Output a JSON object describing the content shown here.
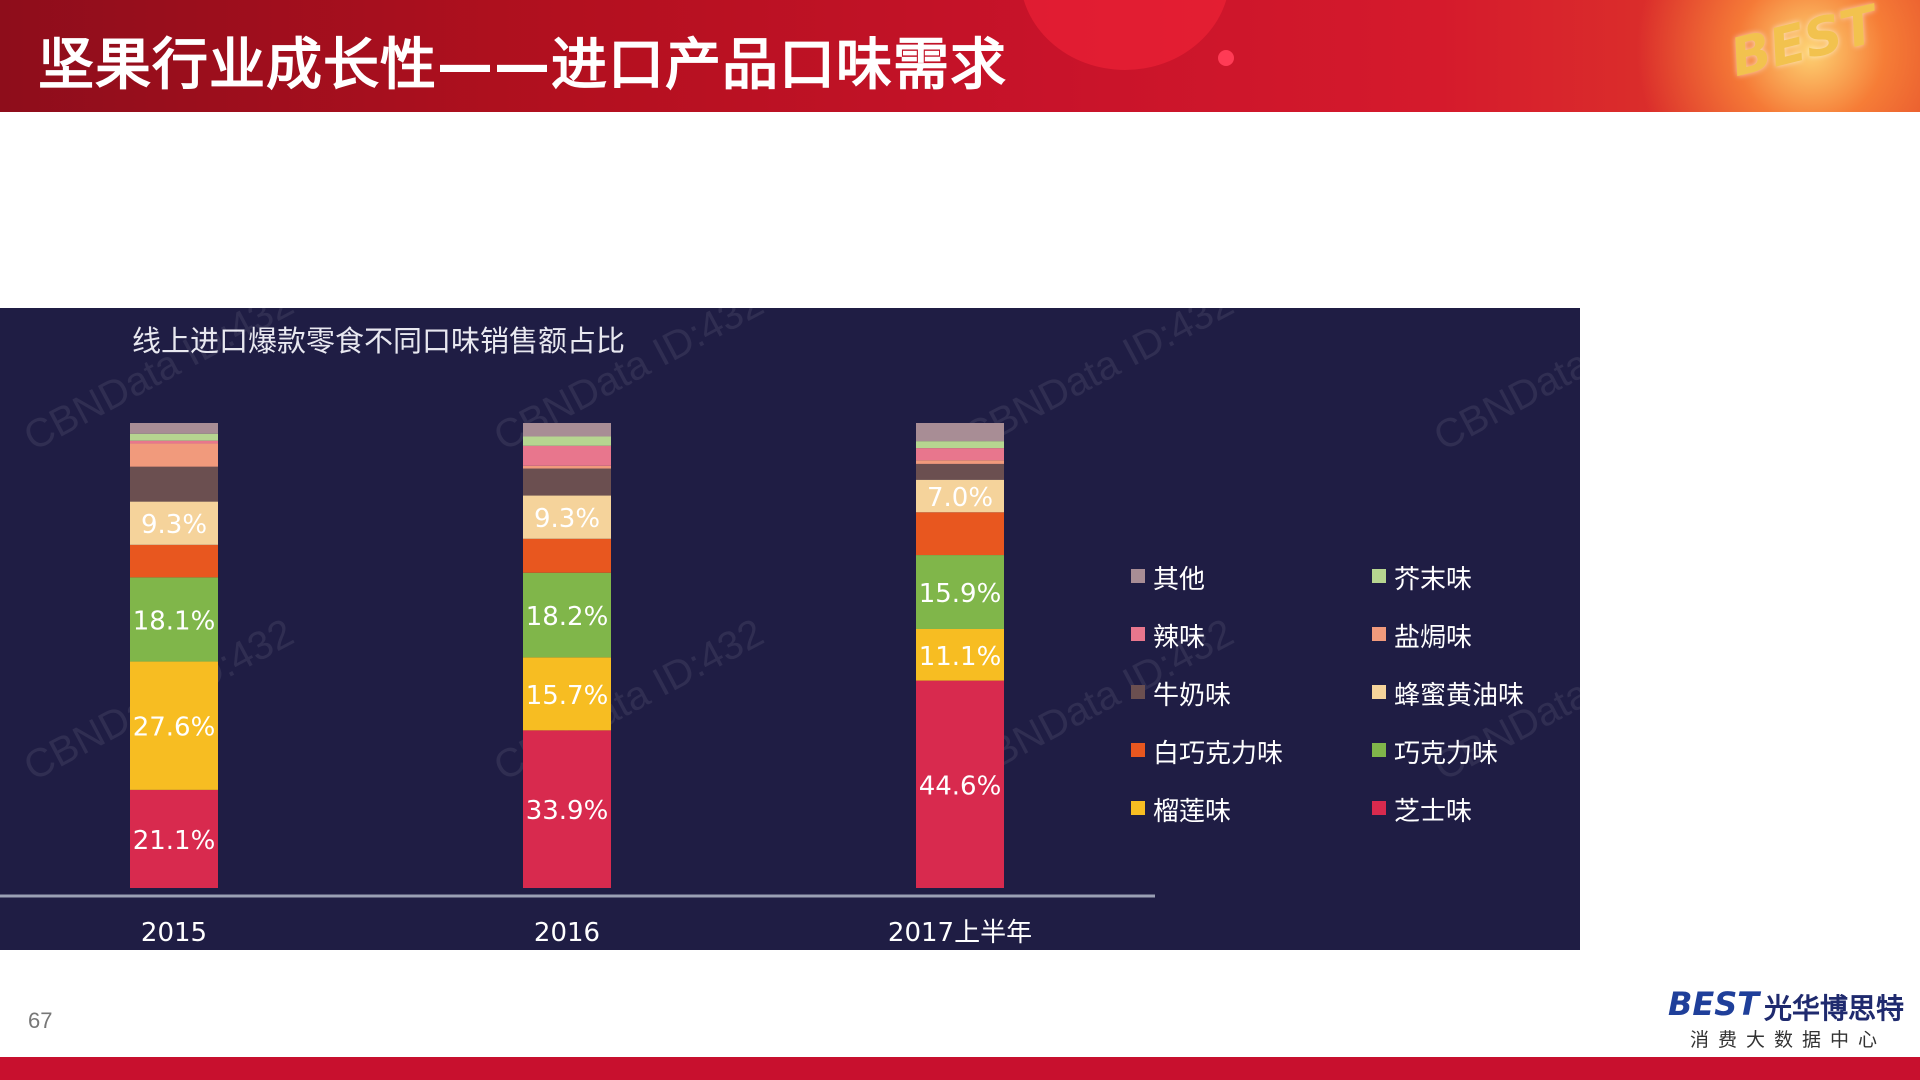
{
  "header": {
    "title": "坚果行业成长性——进口产品口味需求",
    "badge": "BEST"
  },
  "footer": {
    "page_number": "67",
    "brand_mark": "BEST",
    "brand_name": "光华博思特",
    "brand_sub": "消费大数据中心"
  },
  "watermark": {
    "text": "CBNData ID:432"
  },
  "colors": {
    "header_red": "#b3101f",
    "panel_bg": "#1f1d44",
    "footer_red": "#c8102e"
  },
  "chart_data": {
    "type": "bar",
    "stacked": true,
    "title": "线上进口爆款零食不同口味销售额占比",
    "categories": [
      "2015",
      "2016",
      "2017上半年"
    ],
    "ylim": [
      0,
      100
    ],
    "legend_position": "right",
    "series": [
      {
        "name": "芝士味",
        "color": "#d82a4e",
        "values": [
          21.1,
          33.9,
          44.6
        ],
        "labels": [
          "21.1%",
          "33.9%",
          "44.6%"
        ]
      },
      {
        "name": "榴莲味",
        "color": "#f7bd22",
        "values": [
          27.6,
          15.7,
          11.1
        ],
        "labels": [
          "27.6%",
          "15.7%",
          "11.1%"
        ]
      },
      {
        "name": "巧克力味",
        "color": "#80b64a",
        "values": [
          18.1,
          18.2,
          15.9
        ],
        "labels": [
          "18.1%",
          "18.2%",
          "15.9%"
        ]
      },
      {
        "name": "白巧克力味",
        "color": "#e8571f",
        "values": [
          7.0,
          7.3,
          9.2
        ],
        "labels": [
          "",
          "",
          ""
        ]
      },
      {
        "name": "蜂蜜黄油味",
        "color": "#f5d39b",
        "values": [
          9.3,
          9.3,
          7.0
        ],
        "labels": [
          "9.3%",
          "9.3%",
          "7.0%"
        ]
      },
      {
        "name": "牛奶味",
        "color": "#6b4f50",
        "values": [
          7.5,
          5.8,
          3.4
        ],
        "labels": [
          "",
          "",
          ""
        ]
      },
      {
        "name": "盐焗味",
        "color": "#f19a7c",
        "values": [
          5.0,
          0.6,
          0.8
        ],
        "labels": [
          "",
          "",
          ""
        ]
      },
      {
        "name": "辣味",
        "color": "#e8768d",
        "values": [
          0.6,
          4.3,
          2.6
        ],
        "labels": [
          "",
          "",
          ""
        ]
      },
      {
        "name": "芥末味",
        "color": "#b6d590",
        "values": [
          1.5,
          2.0,
          1.5
        ],
        "labels": [
          "",
          "",
          ""
        ]
      },
      {
        "name": "其他",
        "color": "#a88d95",
        "values": [
          2.3,
          2.9,
          3.9
        ],
        "labels": [
          "",
          "",
          ""
        ]
      }
    ],
    "legend_order": [
      "其他",
      "芥末味",
      "辣味",
      "盐焗味",
      "牛奶味",
      "蜂蜜黄油味",
      "白巧克力味",
      "巧克力味",
      "榴莲味",
      "芝士味"
    ]
  }
}
